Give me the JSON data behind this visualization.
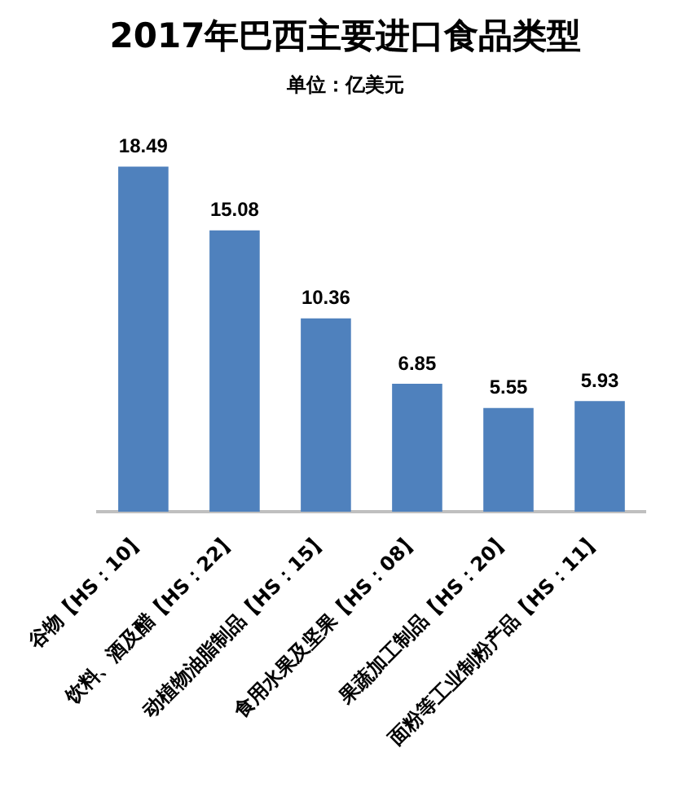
{
  "chart_data": {
    "type": "bar",
    "title": "2017年巴西主要进口食品类型",
    "subtitle": "单位：亿美元",
    "categories": [
      "谷物【HS：10】",
      "饮料、酒及醋【HS：22】",
      "动植物油脂制品【HS：15】",
      "食用水果及坚果【HS：08】",
      "果蔬加工制品【HS：20】",
      "面粉等工业制粉产品【HS：11】"
    ],
    "values": [
      18.49,
      15.08,
      10.36,
      6.85,
      5.55,
      5.93
    ],
    "color": "#4f81bd",
    "data_labels": true,
    "grid": false,
    "legend": false
  }
}
